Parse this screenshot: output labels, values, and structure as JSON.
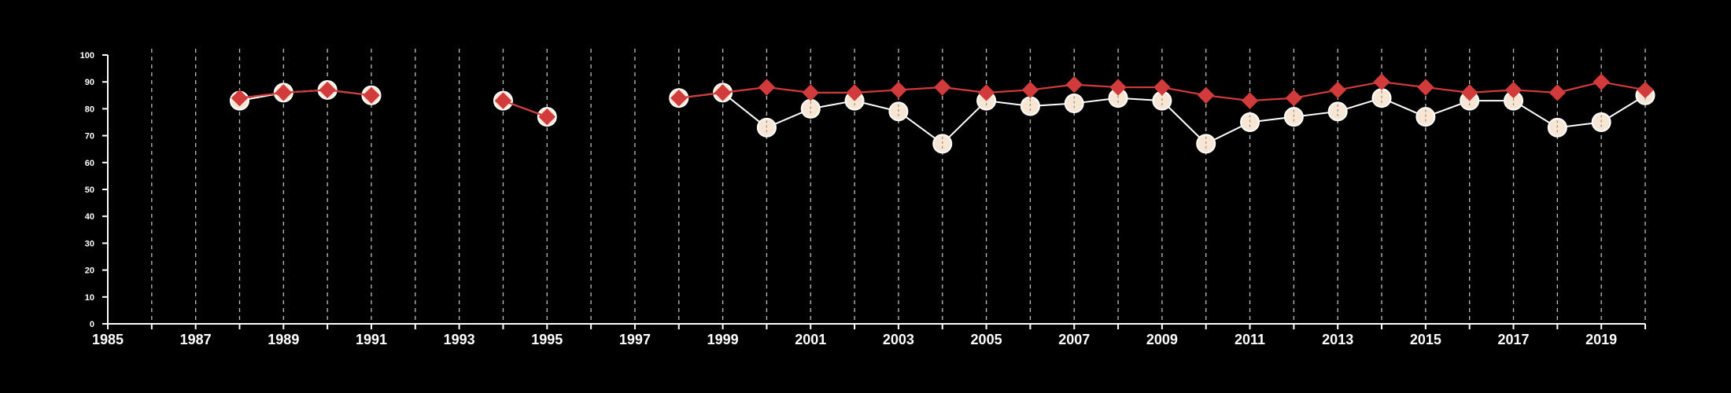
{
  "chart_data": {
    "type": "line",
    "x_ticks": [
      1985,
      1987,
      1989,
      1991,
      1993,
      1995,
      1997,
      1999,
      2001,
      2003,
      2005,
      2007,
      2009,
      2011,
      2013,
      2015,
      2017,
      2019
    ],
    "y_ticks": [
      0,
      10,
      20,
      30,
      40,
      50,
      60,
      70,
      80,
      90,
      100
    ],
    "xlim": [
      1985,
      2020
    ],
    "ylim": [
      0,
      100
    ],
    "grid": "vertical dashed lines at each year",
    "colors": {
      "background": "#000000",
      "axis": "#ffffff",
      "grid": "#bdbdbd",
      "series_circle_fill": "#f7e6d4",
      "series_circle_line": "#ffffff",
      "series_diamond_fill": "#d23b3b",
      "series_diamond_line": "#d23b3b"
    },
    "series": [
      {
        "marker": "circle",
        "x": [
          1988,
          1989,
          1990,
          1991,
          1994,
          1995,
          1998,
          1999,
          2000,
          2001,
          2002,
          2003,
          2004,
          2005,
          2006,
          2007,
          2008,
          2009,
          2010,
          2011,
          2012,
          2013,
          2014,
          2015,
          2016,
          2017,
          2018,
          2019,
          2020
        ],
        "values": [
          83,
          86,
          87,
          85,
          83,
          77,
          84,
          86,
          73,
          80,
          83,
          79,
          67,
          83,
          81,
          82,
          84,
          83,
          67,
          75,
          77,
          79,
          84,
          77,
          83,
          83,
          73,
          75,
          85
        ]
      },
      {
        "marker": "diamond",
        "x": [
          1988,
          1989,
          1990,
          1991,
          1994,
          1995,
          1998,
          1999,
          2000,
          2001,
          2002,
          2003,
          2004,
          2005,
          2006,
          2007,
          2008,
          2009,
          2010,
          2011,
          2012,
          2013,
          2014,
          2015,
          2016,
          2017,
          2018,
          2019,
          2020
        ],
        "values": [
          84,
          86,
          87,
          85,
          83,
          77,
          84,
          86,
          88,
          86,
          86,
          87,
          88,
          86,
          87,
          89,
          88,
          88,
          85,
          83,
          84,
          87,
          90,
          88,
          86,
          87,
          86,
          90,
          87
        ]
      }
    ]
  }
}
